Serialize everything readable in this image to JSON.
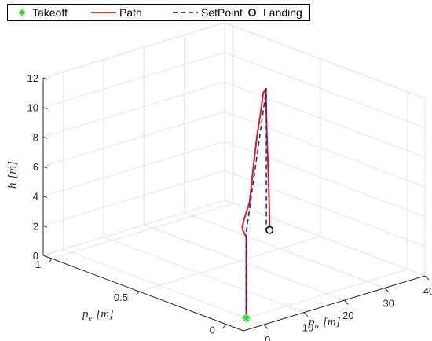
{
  "chart_data": {
    "type": "line",
    "projection": "3d",
    "legend": {
      "placement": "top",
      "entries": [
        {
          "label": "Takeoff",
          "marker": "*",
          "color": "#22dd22"
        },
        {
          "label": "Path",
          "line": "solid",
          "color": "#e8141b"
        },
        {
          "label": "SetPoint",
          "line": "dashed",
          "color": "#1f2ea6"
        },
        {
          "label": "Landing",
          "marker": "o",
          "color": "#000000"
        }
      ]
    },
    "axes": {
      "x": {
        "label_main": "p",
        "label_sub": "n",
        "label_unit": "[m]",
        "ticks": [
          "0",
          "10",
          "20",
          "30",
          "40"
        ],
        "lim": [
          -5,
          40
        ]
      },
      "y": {
        "label_main": "p",
        "label_sub": "e",
        "label_unit": "[m]",
        "ticks": [
          "0",
          "0.5",
          "1"
        ],
        "lim": [
          -0.1,
          1.05
        ]
      },
      "z": {
        "label_main": "h",
        "label_unit": "[m]",
        "ticks": [
          "0",
          "2",
          "4",
          "6",
          "8",
          "10",
          "12"
        ],
        "lim": [
          0,
          12
        ]
      },
      "grid": true
    },
    "series": [
      {
        "name": "Path",
        "color": "#e8141b",
        "points": [
          [
            0,
            0,
            0
          ],
          [
            0,
            0,
            2
          ],
          [
            0,
            0,
            4
          ],
          [
            0,
            0,
            5.5
          ],
          [
            0.05,
            0.02,
            5.85
          ],
          [
            0.3,
            0.03,
            6.0
          ],
          [
            2,
            0.06,
            6.2
          ],
          [
            6,
            0.12,
            6.8
          ],
          [
            10,
            0.2,
            7.5
          ],
          [
            15,
            0.3,
            8.3
          ],
          [
            20,
            0.4,
            9.0
          ],
          [
            25,
            0.5,
            9.3
          ],
          [
            30,
            0.6,
            9.8
          ],
          [
            31,
            0.62,
            9.9
          ],
          [
            33,
            0.65,
            9.9
          ],
          [
            33.4,
            0.66,
            9.5
          ],
          [
            33.6,
            0.66,
            7.0
          ],
          [
            34,
            0.66,
            4.0
          ],
          [
            34.2,
            0.66,
            2.0
          ],
          [
            34.3,
            0.66,
            0.4
          ]
        ]
      },
      {
        "name": "SetPoint",
        "color": "#1f2ea6",
        "dashed": true,
        "points": [
          [
            0,
            0,
            0
          ],
          [
            0,
            0,
            5.8
          ],
          [
            33.5,
            0.66,
            9.8
          ],
          [
            33.5,
            0.66,
            0.2
          ]
        ]
      }
    ],
    "markers": [
      {
        "name": "Takeoff",
        "point": [
          0,
          0,
          0
        ],
        "color": "#22dd22"
      },
      {
        "name": "Landing",
        "point": [
          34.3,
          0.66,
          0.2
        ],
        "color": "#000000"
      }
    ]
  }
}
